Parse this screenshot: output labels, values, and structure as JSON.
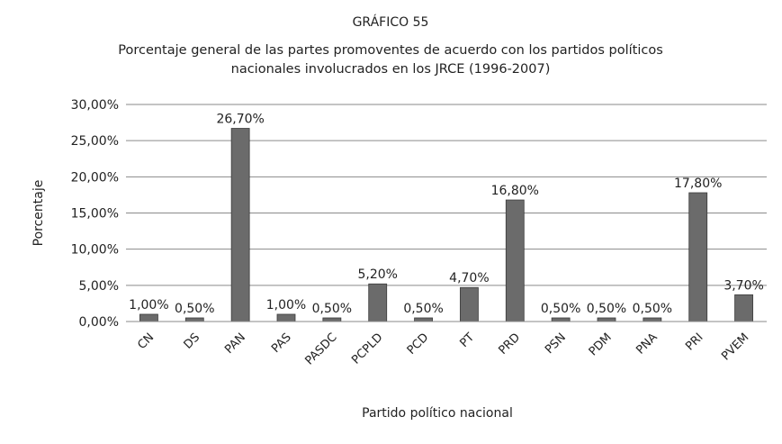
{
  "chart_data": {
    "type": "bar",
    "title_line1": "GRÁFICO 55",
    "title_line2": "Porcentaje general de las partes promoventes de acuerdo con los partidos políticos",
    "title_line3": "nacionales involucrados en los JRCE (1996-2007)",
    "xlabel": "Partido político nacional",
    "ylabel": "Porcentaje",
    "ylim": [
      0,
      30
    ],
    "yticks": [
      "0,00%",
      "5,00%",
      "10,00%",
      "15,00%",
      "20,00%",
      "25,00%",
      "30,00%"
    ],
    "grid": true,
    "bar_color": "#6b6b6b",
    "categories": [
      "CN",
      "DS",
      "PAN",
      "PAS",
      "PASDC",
      "PCPLD",
      "PCD",
      "PT",
      "PRD",
      "PSN",
      "PDM",
      "PNA",
      "PRI",
      "PVEM"
    ],
    "values": [
      1.0,
      0.5,
      26.7,
      1.0,
      0.5,
      5.2,
      0.5,
      4.7,
      16.8,
      0.5,
      0.5,
      0.5,
      17.8,
      3.7
    ],
    "data_labels": [
      "1,00%",
      "0,50%",
      "26,70%",
      "1,00%",
      "0,50%",
      "5,20%",
      "0,50%",
      "4,70%",
      "16,80%",
      "0,50%",
      "0,50%",
      "0,50%",
      "17,80%",
      "3,70%"
    ]
  }
}
